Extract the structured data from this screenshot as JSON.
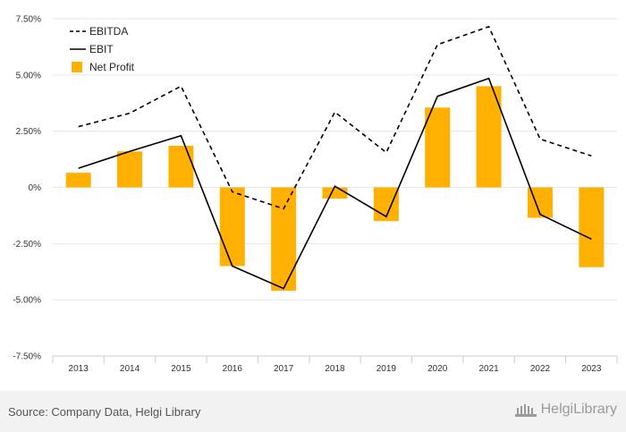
{
  "chart_data": {
    "type": "bar+line",
    "categories": [
      "2013",
      "2014",
      "2015",
      "2016",
      "2017",
      "2018",
      "2019",
      "2020",
      "2021",
      "2022",
      "2023"
    ],
    "yticks": [
      -7.5,
      -5.0,
      -2.5,
      0,
      2.5,
      5.0,
      7.5
    ],
    "ytick_labels": [
      "-7.50%",
      "-5.00%",
      "-2.50%",
      "0%",
      "2.50%",
      "5.00%",
      "7.50%"
    ],
    "ylim": [
      -7.5,
      7.5
    ],
    "series": [
      {
        "name": "EBITDA",
        "kind": "line-dashed",
        "color": "#000000",
        "values": [
          2.7,
          3.3,
          4.5,
          -0.2,
          -0.95,
          3.35,
          1.55,
          6.35,
          7.15,
          2.15,
          1.4
        ]
      },
      {
        "name": "EBIT",
        "kind": "line",
        "color": "#000000",
        "values": [
          0.85,
          1.6,
          2.3,
          -3.5,
          -4.5,
          0.05,
          -1.3,
          4.05,
          4.85,
          -1.2,
          -2.3
        ]
      },
      {
        "name": "Net Profit",
        "kind": "bar",
        "color": "#FFB000",
        "values": [
          0.65,
          1.6,
          1.85,
          -3.5,
          -4.6,
          -0.5,
          -1.5,
          3.55,
          4.5,
          -1.35,
          -3.55
        ]
      }
    ],
    "legend_position": "top-left",
    "grid": true
  },
  "footer": {
    "source": "Source: Company Data, Helgi Library",
    "brand": "HelgiLibrary"
  }
}
